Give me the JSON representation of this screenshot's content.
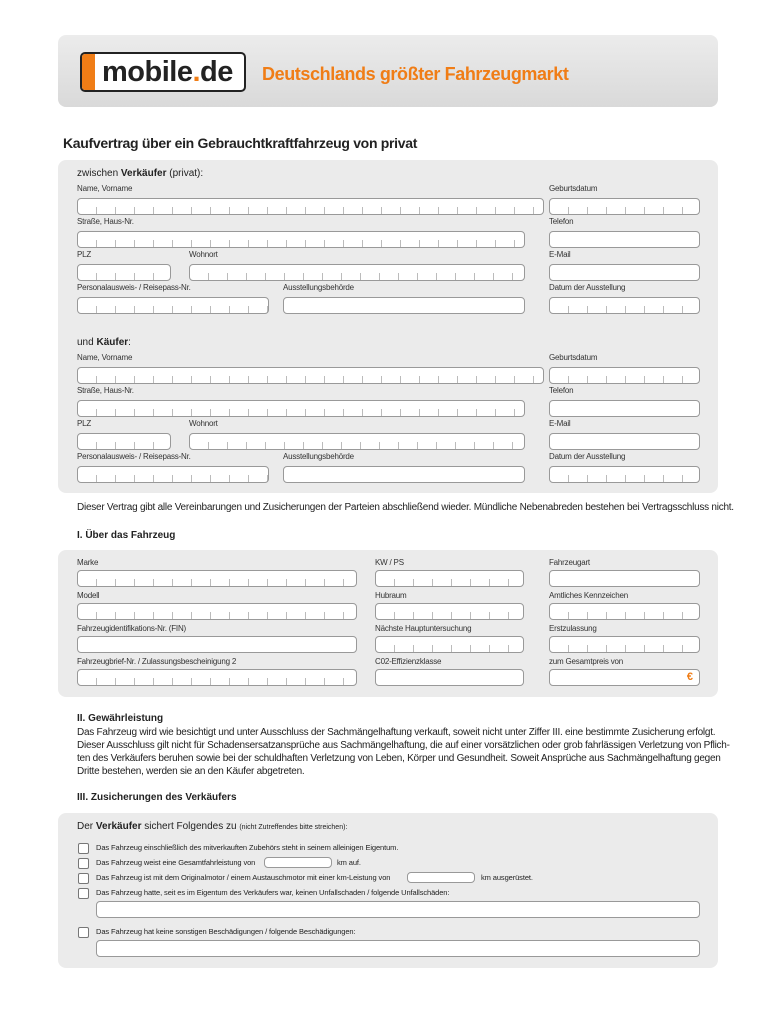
{
  "header": {
    "logo_text": "mobile.de",
    "tagline": "Deutschlands größter Fahrzeugmarkt"
  },
  "title": "Kaufvertrag über ein Gebrauchtkraftfahrzeug von privat",
  "seller": {
    "intro_pre": "zwischen ",
    "intro_bold": "Verkäufer",
    "intro_post": " (privat):",
    "labels": [
      "Name, Vorname",
      "Geburtsdatum",
      "Straße, Haus-Nr.",
      "Telefon",
      "PLZ",
      "Wohnort",
      "E-Mail",
      "Personalausweis- / Reisepass-Nr.",
      "Ausstellungsbehörde",
      "Datum der Ausstellung"
    ]
  },
  "buyer": {
    "intro_pre": "und ",
    "intro_bold": "Käufer",
    "intro_post": ":",
    "labels": [
      "Name, Vorname",
      "Geburtsdatum",
      "Straße, Haus-Nr.",
      "Telefon",
      "PLZ",
      "Wohnort",
      "E-Mail",
      "Personalausweis- / Reisepass-Nr.",
      "Ausstellungsbehörde",
      "Datum der Ausstellung"
    ]
  },
  "agreement_note": "Dieser Vertrag gibt alle Vereinbarungen und Zusicherungen der Parteien abschließend wieder. Mündliche Nebenabreden bestehen bei Vertragsschluss nicht.",
  "vehicle": {
    "heading": "I. Über das Fahrzeug",
    "labels": [
      "Marke",
      "KW / PS",
      "Fahrzeugart",
      "Modell",
      "Hubraum",
      "Amtliches Kennzeichen",
      "Fahrzeugidentifikations-Nr. (FIN)",
      "Nächste Hauptuntersuchung",
      "Erstzulassung",
      "Fahrzeugbrief-Nr. / Zulassungsbescheinigung 2",
      "C02-Effizienzklasse",
      "zum Gesamtpreis von"
    ],
    "currency": "€"
  },
  "warranty": {
    "heading": "II. Gewährleistung",
    "lines": [
      "Das Fahrzeug wird wie besichtigt und unter Ausschluss der Sachmängelhaftung verkauft, soweit nicht unter Ziffer III. eine bestimmte Zusicherung erfolgt.",
      "Dieser Ausschluss gilt nicht für Schadensersatzansprüche aus Sachmängelhaftung, die auf einer vorsätzlichen oder grob fahrlässigen Verletzung von Pflich-",
      "ten des Verkäufers beruhen sowie bei der schuldhaften Verletzung von Leben, Körper und Gesundheit. Soweit Ansprüche aus Sachmängelhaftung gegen",
      "Dritte bestehen, werden sie an den Käufer abgetreten."
    ]
  },
  "assurances": {
    "heading": "III. Zusicherungen des Verkäufers",
    "intro_pre": "Der ",
    "intro_bold": "Verkäufer",
    "intro_post": " sichert Folgendes zu ",
    "intro_small": "(nicht Zutreffendes bitte streichen):",
    "items": [
      {
        "text": "Das Fahrzeug einschließlich des mitverkauften Zubehörs steht in seinem alleinigen Eigentum."
      },
      {
        "text": "Das Fahrzeug weist eine Gesamtfahrleistung von",
        "suffix": "km auf."
      },
      {
        "text": "Das Fahrzeug ist mit dem Originalmotor / einem Austauschmotor mit einer km-Leistung von",
        "suffix": "km ausgerüstet."
      },
      {
        "text": "Das Fahrzeug hatte, seit es im Eigentum des Verkäufers war, keinen Unfallschaden / folgende Unfallschäden:"
      },
      {
        "text": "Das Fahrzeug hat keine sonstigen Beschädigungen / folgende Beschädigungen:"
      }
    ]
  },
  "colors": {
    "brand_orange": "#f07d16",
    "panel_gray": "#ebebeb"
  }
}
